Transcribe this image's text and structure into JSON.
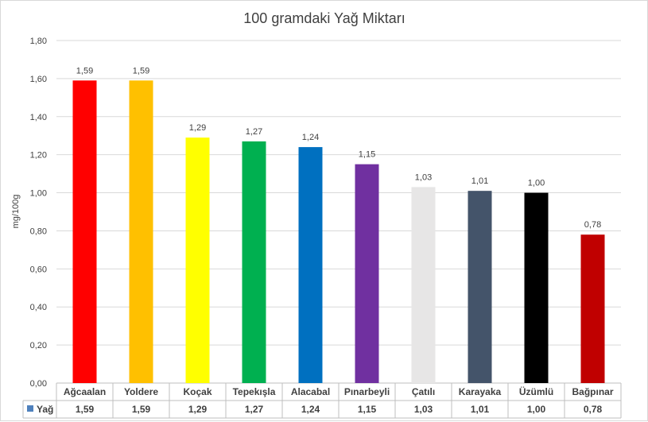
{
  "chart_data": {
    "type": "bar",
    "title": "100 gramdaki Yağ Miktarı",
    "ylabel": "mg/100g",
    "xlabel": "",
    "ylim": [
      0,
      1.8
    ],
    "y_ticks": [
      "0,00",
      "0,20",
      "0,40",
      "0,60",
      "0,80",
      "1,00",
      "1,20",
      "1,40",
      "1,60",
      "1,80"
    ],
    "grid": true,
    "categories": [
      "Ağcaalan",
      "Yoldere",
      "Koçak",
      "Tepekışla",
      "Alacabal",
      "Pınarbeyli",
      "Çatılı",
      "Karayaka",
      "Üzümlü",
      "Bağpınar"
    ],
    "series": [
      {
        "name": "Yağ",
        "legend_color": "#4f81bd",
        "values": [
          1.59,
          1.59,
          1.29,
          1.27,
          1.24,
          1.15,
          1.03,
          1.01,
          1.0,
          0.78
        ],
        "labels": [
          "1,59",
          "1,59",
          "1,29",
          "1,27",
          "1,24",
          "1,15",
          "1,03",
          "1,01",
          "1,00",
          "0,78"
        ],
        "colors": [
          "#ff0000",
          "#ffc000",
          "#ffff00",
          "#00b050",
          "#0070c0",
          "#7030a0",
          "#e7e6e6",
          "#44546a",
          "#000000",
          "#c00000"
        ]
      }
    ],
    "data_table": true
  }
}
